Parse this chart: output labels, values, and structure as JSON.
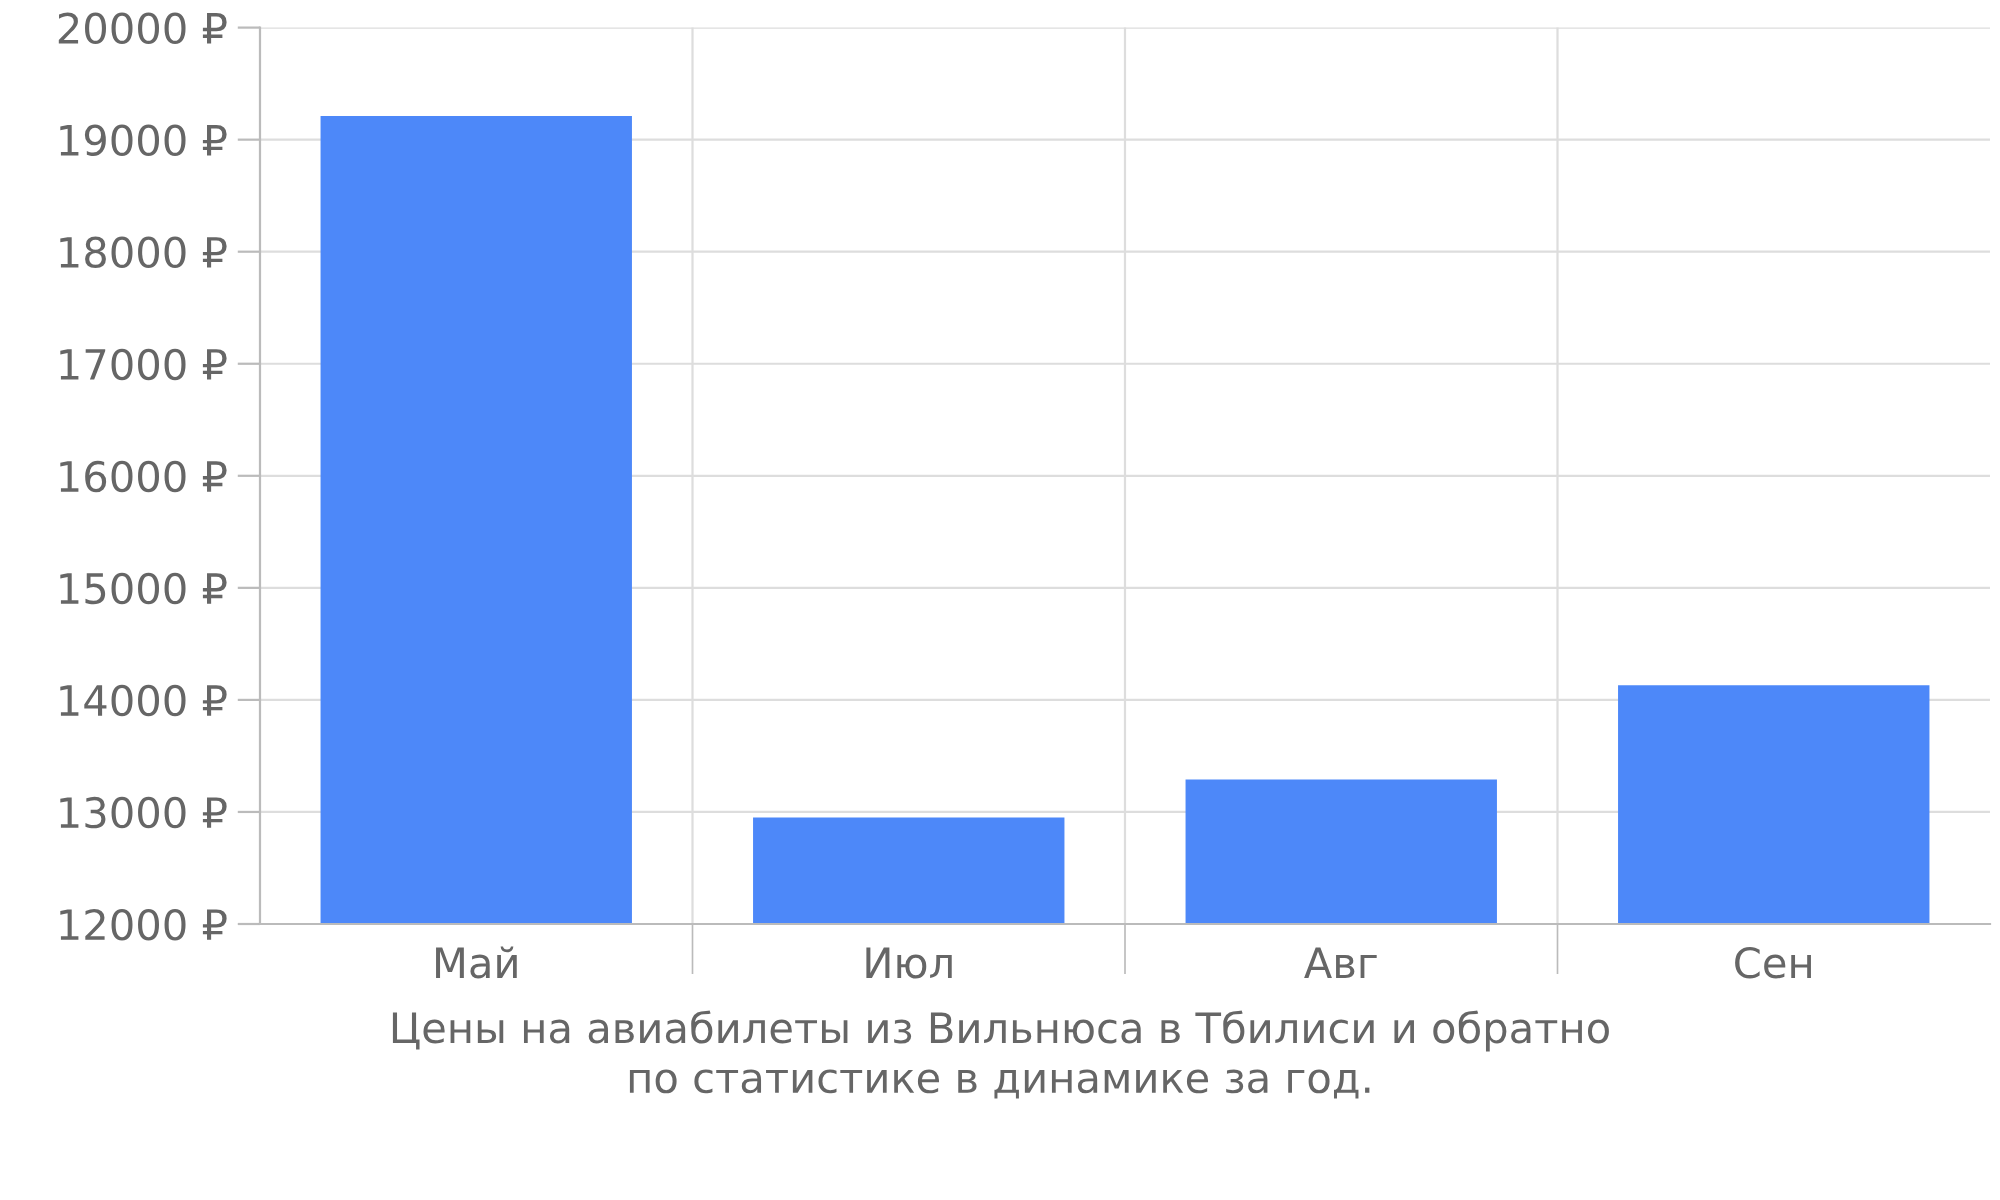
{
  "chart_data": {
    "type": "bar",
    "categories": [
      "Май",
      "Июл",
      "Авг",
      "Сен"
    ],
    "series": [
      {
        "color": "#4d88f9",
        "values": [
          19210,
          12950,
          13290,
          14130
        ]
      }
    ],
    "ylim": [
      12000,
      20000
    ],
    "yticks": [
      {
        "value": 12000,
        "label": "12000 ₽"
      },
      {
        "value": 13000,
        "label": "13000 ₽"
      },
      {
        "value": 14000,
        "label": "14000 ₽"
      },
      {
        "value": 15000,
        "label": "15000 ₽"
      },
      {
        "value": 16000,
        "label": "16000 ₽"
      },
      {
        "value": 17000,
        "label": "17000 ₽"
      },
      {
        "value": 18000,
        "label": "18000 ₽"
      },
      {
        "value": 19000,
        "label": "19000 ₽"
      },
      {
        "value": 20000,
        "label": "20000 ₽"
      }
    ],
    "grid": true,
    "annotations": [
      "Цены на авиабилеты из Вильнюса в Тбилиси и обратно\nпо статистике в динамике за год."
    ]
  }
}
